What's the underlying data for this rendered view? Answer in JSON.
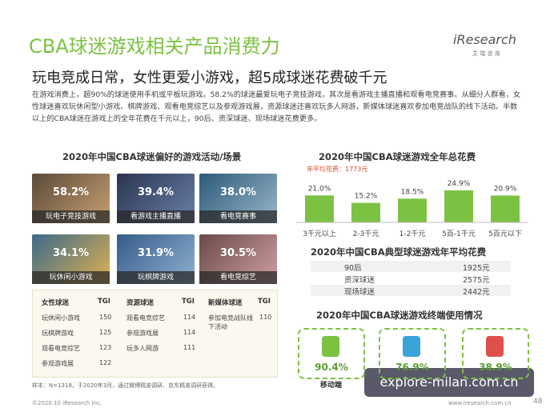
{
  "header": {
    "title": "CBA球迷游戏相关产品消费力",
    "subtitle": "玩电竞成日常，女性更爱小游戏，超5成球迷花费破千元",
    "logo": "iResearch",
    "logo_cn": "艾 瑞 咨 询",
    "paragraph": "在游戏消费上，超90%的球迷使用手机或平板玩游戏。58.2%的球迷最爱玩电子竞技游戏，其次是看游戏主播直播和观看电竞赛事。从细分人群看，女性球迷喜欢玩休闲型小游戏、棋牌游戏、观看电竞综艺以及参观游戏展，资源球迷还喜欢玩多人网游，新媒体球迷喜欢参加电竞战队的线下活动。半数以上的CBA球迷在游戏上的全年花费在千元以上，90后、资深球迷、现场球迷花费更多。"
  },
  "activities": {
    "title": "2020年中国CBA球迷偏好的游戏活动/场景",
    "tiles": [
      {
        "pct": "58.2%",
        "label": "玩电子竞技游戏"
      },
      {
        "pct": "39.4%",
        "label": "看游戏主播直播"
      },
      {
        "pct": "38.0%",
        "label": "看电竞赛事"
      },
      {
        "pct": "34.1%",
        "label": "玩休闲小游戏"
      },
      {
        "pct": "31.9%",
        "label": "玩棋牌游戏"
      },
      {
        "pct": "30.5%",
        "label": "看电竞综艺"
      }
    ]
  },
  "tgi": {
    "groups": [
      {
        "name": "女性球迷",
        "col": "TGI",
        "rows": [
          [
            "玩休闲小游戏",
            "150"
          ],
          [
            "玩棋牌游戏",
            "125"
          ],
          [
            "观看电竞综艺",
            "123"
          ],
          [
            "参观游戏展",
            "122"
          ]
        ]
      },
      {
        "name": "资源球迷",
        "col": "TGI",
        "rows": [
          [
            "观看电竞综艺",
            "114"
          ],
          [
            "参观游戏展",
            "114"
          ],
          [
            "玩多人网游",
            "111"
          ]
        ]
      },
      {
        "name": "新媒体球迷",
        "col": "TGI",
        "rows": [
          [
            "参加电竞战队线下活动",
            "110"
          ]
        ]
      }
    ]
  },
  "chart_data": {
    "type": "bar",
    "title": "2020年中国CBA球迷游戏全年总花费",
    "annotation": "年平均花费：1773元",
    "categories": [
      "3千元以上",
      "2-3千元",
      "1-2千元",
      "5百-1千元",
      "5百元以下"
    ],
    "values": [
      21.0,
      15.2,
      18.5,
      24.9,
      20.9
    ],
    "value_labels": [
      "21.0%",
      "15.2%",
      "18.5%",
      "24.9%",
      "20.9%"
    ],
    "color": "#7cc242"
  },
  "average": {
    "title": "2020年中国CBA典型球迷游戏年平均花费",
    "rows": [
      [
        "90后",
        "1925元"
      ],
      [
        "资深球迷",
        "2575元"
      ],
      [
        "现场球迷",
        "2442元"
      ]
    ]
  },
  "devices": {
    "title": "2020年中国CBA球迷游戏终端使用情况",
    "items": [
      {
        "pct": "90.4%",
        "label": "移动端"
      },
      {
        "pct": "76.9%"
      },
      {
        "pct": "38.9%"
      }
    ]
  },
  "footer": {
    "note": "样本：N=1318，于2020年3月，通过微博精准调研、京东精准调研获得。",
    "copyright": "©2020.10 iResearch Inc.",
    "url": "www.iresearch.com.cn",
    "page": "48",
    "watermark": "explore-milan.com.cn"
  }
}
